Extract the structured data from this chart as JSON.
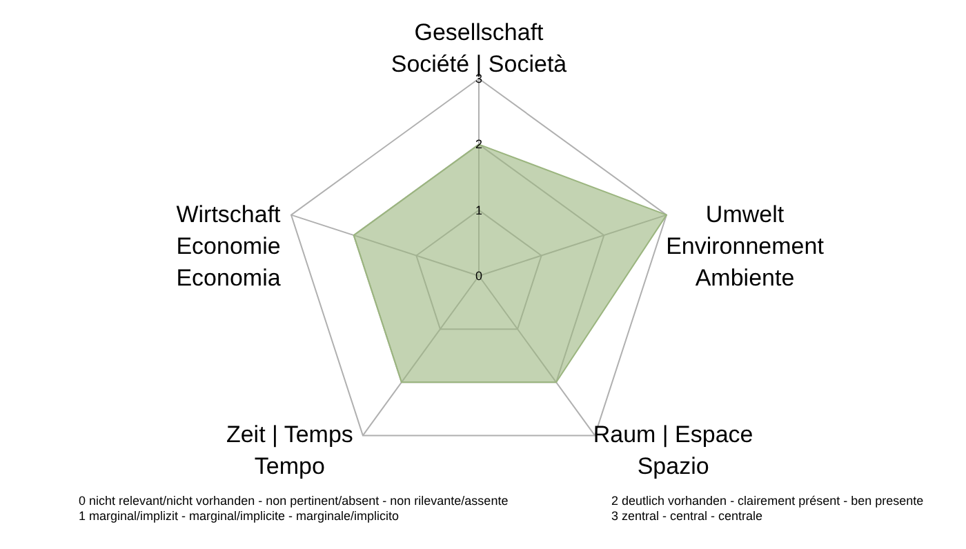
{
  "chart_data": {
    "type": "radar",
    "categories": [
      "Gesellschaft\nSociété | Società",
      "Umwelt\nEnvironnement\nAmbiente",
      "Raum | Espace\nSpazio",
      "Zeit | Temps\nTempo",
      "Wirtschaft\nEconomie\nEconomia"
    ],
    "series": [
      {
        "color": "#9bb57f",
        "values": [
          2,
          3,
          2,
          2,
          2
        ]
      }
    ],
    "ylim": [
      0,
      3
    ],
    "yticks": [
      0,
      1,
      2,
      3
    ],
    "grid": true,
    "annotations": [
      "0 nicht relevant/nicht vorhanden - non pertinent/absent - non rilevante/assente",
      "1 marginal/implizit - marginal/implicite - marginale/implicito",
      "2 deutlich vorhanden - clairement présent - ben presente",
      "3 zentral -  central - centrale"
    ]
  }
}
